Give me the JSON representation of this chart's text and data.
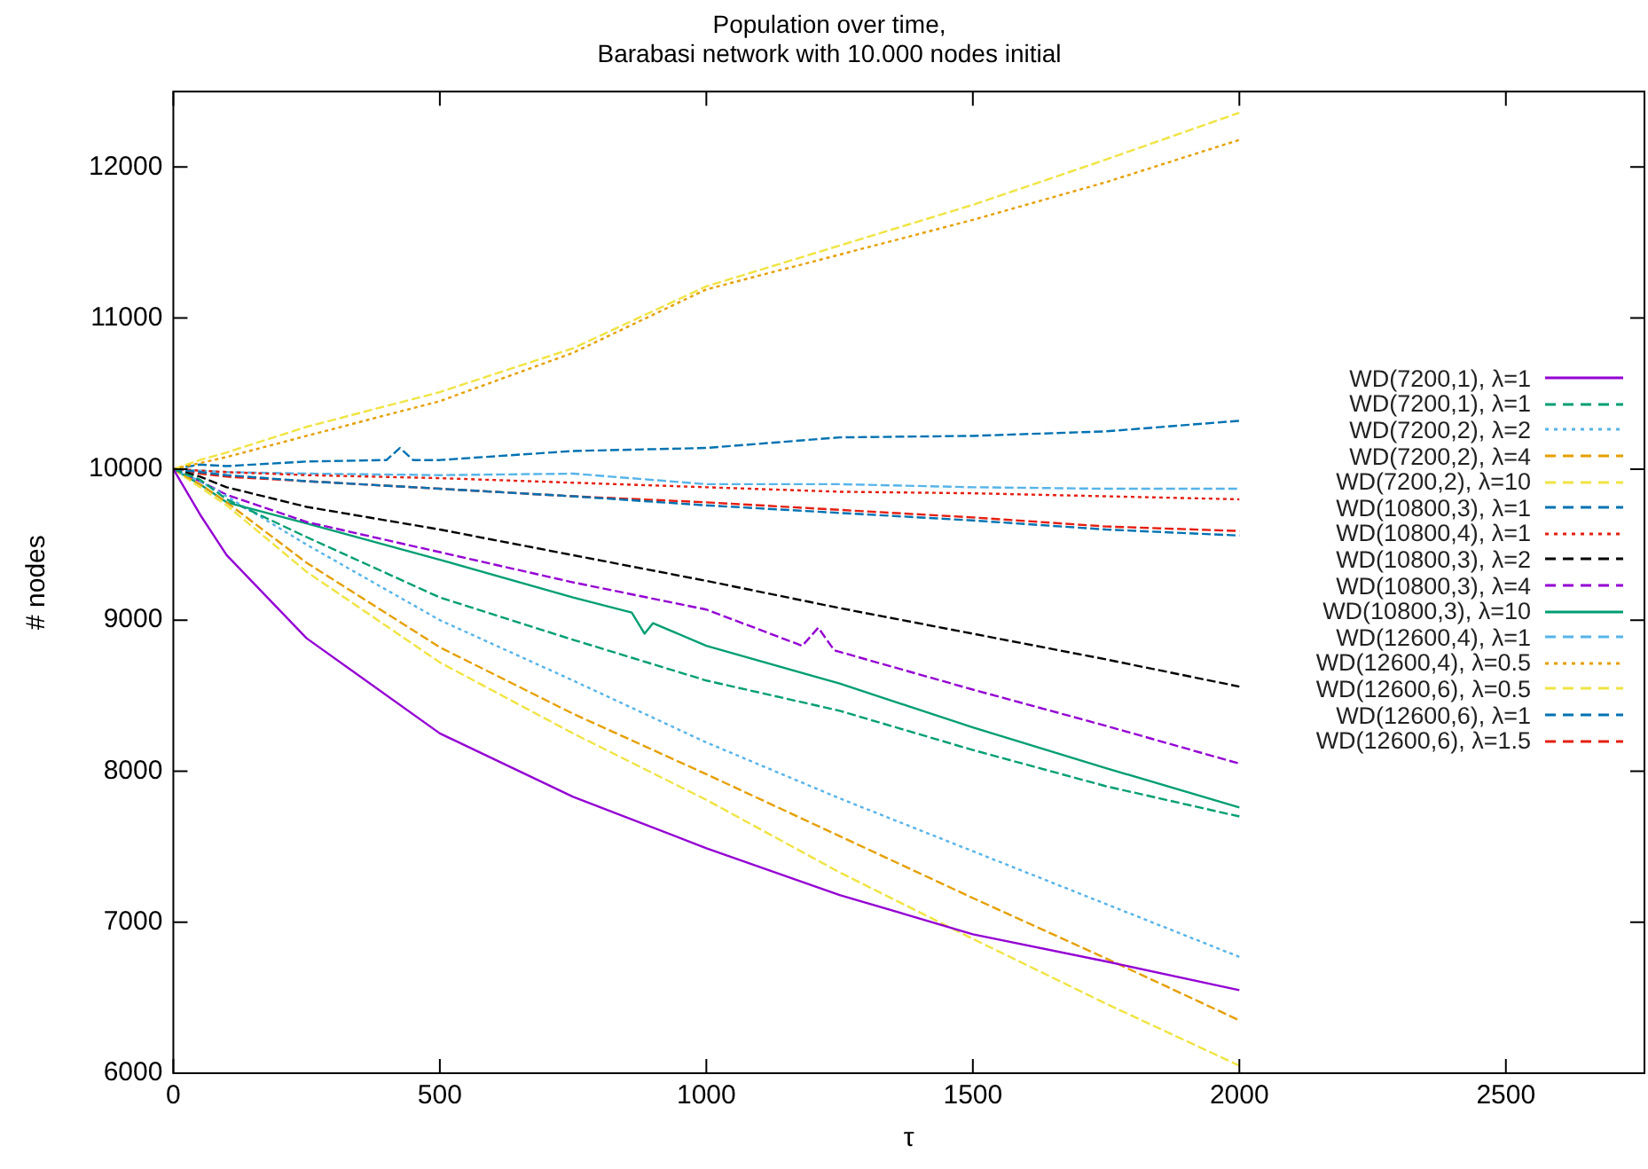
{
  "chart_data": {
    "type": "line",
    "title": "Population over time, Barabasi network with 10.000 nodes initial",
    "xlabel": "τ",
    "ylabel": "# nodes",
    "xlim": [
      0,
      2760
    ],
    "xticks": [
      0,
      500,
      1000,
      1500,
      2000,
      2500
    ],
    "ylim": [
      6000,
      12500
    ],
    "yticks": [
      6000,
      7000,
      8000,
      9000,
      10000,
      11000,
      12000
    ],
    "grid": false,
    "legend": "right",
    "series": [
      {
        "name": "WD(7200,1), λ=1",
        "color": "#9400d3",
        "line_style": "solid",
        "x": [
          0,
          50,
          100,
          250,
          500,
          750,
          1000,
          1250,
          1500,
          1750,
          2000
        ],
        "values": [
          10000,
          9700,
          9430,
          8880,
          8250,
          7830,
          7490,
          7180,
          6920,
          6740,
          6550
        ]
      },
      {
        "name": "WD(7200,1), λ=1",
        "color": "#009e73",
        "line_style": "dashed",
        "x": [
          0,
          50,
          100,
          250,
          500,
          750,
          1000,
          1250,
          1500,
          1750,
          2000
        ],
        "values": [
          10000,
          9930,
          9800,
          9550,
          9150,
          8870,
          8600,
          8400,
          8140,
          7900,
          7700
        ]
      },
      {
        "name": "WD(7200,2), λ=2",
        "color": "#56b4e9",
        "line_style": "dotted",
        "x": [
          0,
          50,
          100,
          250,
          500,
          750,
          1000,
          1250,
          1500,
          1750,
          2000
        ],
        "values": [
          10000,
          9920,
          9820,
          9500,
          9000,
          8600,
          8190,
          7820,
          7470,
          7120,
          6770
        ]
      },
      {
        "name": "WD(7200,2), λ=4",
        "color": "#e69f00",
        "line_style": "dashed",
        "x": [
          0,
          50,
          100,
          250,
          500,
          750,
          1000,
          1250,
          1500,
          1750,
          2000
        ],
        "values": [
          10000,
          9900,
          9780,
          9380,
          8820,
          8380,
          7980,
          7570,
          7160,
          6760,
          6350
        ]
      },
      {
        "name": "WD(7200,2), λ=10",
        "color": "#f0e442",
        "line_style": "dashed",
        "x": [
          0,
          50,
          100,
          250,
          500,
          750,
          1000,
          1250,
          1500,
          1750,
          2000
        ],
        "values": [
          10000,
          9880,
          9760,
          9320,
          8720,
          8250,
          7810,
          7330,
          6890,
          6460,
          6050
        ]
      },
      {
        "name": "WD(10800,3), λ=1",
        "color": "#0072b2",
        "line_style": "dashed",
        "x": [
          0,
          50,
          100,
          250,
          500,
          750,
          1000,
          1250,
          1500,
          1750,
          2000
        ],
        "values": [
          10000,
          9980,
          9960,
          9920,
          9870,
          9820,
          9760,
          9710,
          9660,
          9600,
          9560
        ]
      },
      {
        "name": "WD(10800,4), λ=1",
        "color": "#e51e10",
        "line_style": "dotted",
        "x": [
          0,
          50,
          100,
          250,
          500,
          750,
          1000,
          1250,
          1500,
          1750,
          2000
        ],
        "values": [
          10000,
          9990,
          9980,
          9960,
          9940,
          9910,
          9880,
          9850,
          9840,
          9820,
          9800
        ]
      },
      {
        "name": "WD(10800,3), λ=2",
        "color": "#000000",
        "line_style": "dashed",
        "x": [
          0,
          50,
          100,
          250,
          500,
          750,
          1000,
          1250,
          1500,
          1750,
          2000
        ],
        "values": [
          10000,
          9950,
          9880,
          9750,
          9600,
          9430,
          9260,
          9080,
          8910,
          8740,
          8560
        ]
      },
      {
        "name": "WD(10800,3), λ=4",
        "color": "#9400d3",
        "line_style": "dashed",
        "x": [
          0,
          50,
          100,
          250,
          500,
          750,
          1000,
          1180,
          1210,
          1240,
          1500,
          1750,
          2000
        ],
        "values": [
          10000,
          9920,
          9830,
          9650,
          9450,
          9250,
          9070,
          8830,
          8950,
          8800,
          8540,
          8300,
          8050
        ]
      },
      {
        "name": "WD(10800,3), λ=10",
        "color": "#009e73",
        "line_style": "solid",
        "x": [
          0,
          50,
          100,
          250,
          500,
          750,
          860,
          884,
          900,
          1000,
          1250,
          1500,
          1750,
          2000
        ],
        "values": [
          10000,
          9900,
          9780,
          9640,
          9400,
          9150,
          9050,
          8910,
          8980,
          8830,
          8580,
          8290,
          8020,
          7760
        ]
      },
      {
        "name": "WD(12600,4), λ=1",
        "color": "#56b4e9",
        "line_style": "dashed",
        "x": [
          0,
          50,
          100,
          250,
          500,
          750,
          1000,
          1250,
          1500,
          1750,
          2000
        ],
        "values": [
          10000,
          9990,
          9980,
          9970,
          9960,
          9970,
          9900,
          9900,
          9880,
          9870,
          9870
        ]
      },
      {
        "name": "WD(12600,4), λ=0.5",
        "color": "#e69f00",
        "line_style": "dotted",
        "x": [
          0,
          50,
          100,
          250,
          500,
          750,
          1000,
          1250,
          1500,
          1750,
          2000
        ],
        "values": [
          10000,
          10040,
          10080,
          10220,
          10450,
          10770,
          11190,
          11420,
          11650,
          11900,
          12180
        ]
      },
      {
        "name": "WD(12600,6), λ=0.5",
        "color": "#f0e442",
        "line_style": "dashed",
        "x": [
          0,
          50,
          100,
          250,
          500,
          750,
          1000,
          1250,
          1500,
          1750,
          2000
        ],
        "values": [
          10000,
          10060,
          10110,
          10280,
          10510,
          10800,
          11210,
          11480,
          11750,
          12050,
          12360
        ]
      },
      {
        "name": "WD(12600,6), λ=1",
        "color": "#0072b2",
        "line_style": "dashed",
        "x": [
          0,
          50,
          100,
          250,
          400,
          425,
          450,
          500,
          750,
          1000,
          1250,
          1500,
          1750,
          2000
        ],
        "values": [
          10000,
          10030,
          10020,
          10050,
          10060,
          10140,
          10060,
          10060,
          10120,
          10140,
          10210,
          10220,
          10250,
          10320
        ]
      },
      {
        "name": "WD(12600,6), λ=1.5",
        "color": "#e51e10",
        "line_style": "dashed",
        "x": [
          0,
          50,
          100,
          250,
          500,
          750,
          1000,
          1250,
          1500,
          1750,
          2000
        ],
        "values": [
          10000,
          9970,
          9950,
          9920,
          9870,
          9820,
          9780,
          9730,
          9680,
          9620,
          9590
        ]
      }
    ]
  }
}
